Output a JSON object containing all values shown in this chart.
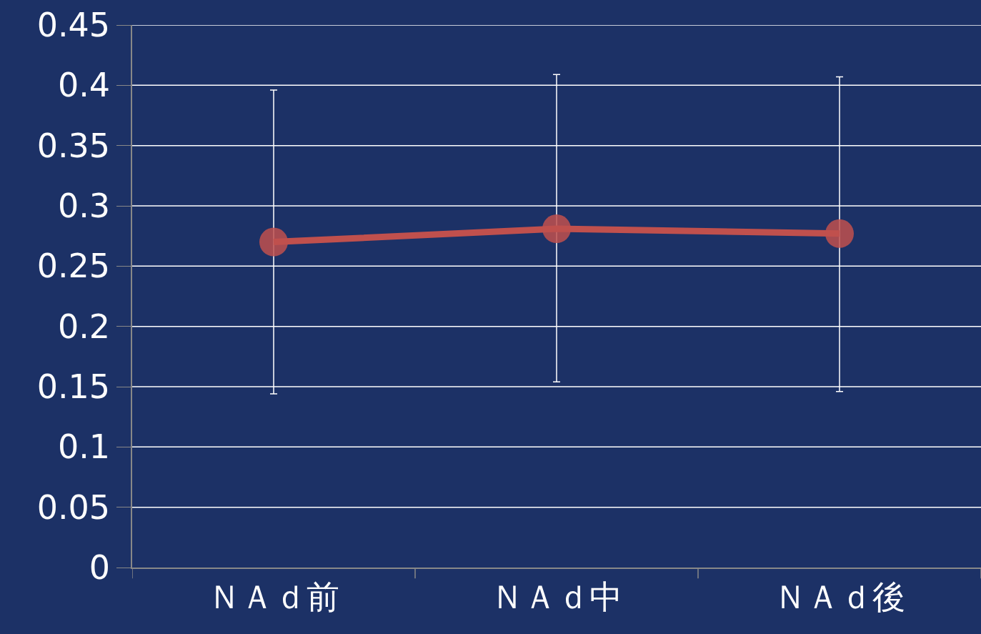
{
  "chart_data": {
    "type": "line",
    "categories": [
      "ＮＡｄ前",
      "ＮＡｄ中",
      "ＮＡｄ後"
    ],
    "series": [
      {
        "color": "#c0504d",
        "values": [
          0.27,
          0.281,
          0.277
        ],
        "errors": [
          [
            0.144,
            0.396
          ],
          [
            0.154,
            0.409
          ],
          [
            0.146,
            0.407
          ]
        ]
      }
    ],
    "ylim": [
      0,
      0.45
    ],
    "yticks": [
      0,
      0.05,
      0.1,
      0.15,
      0.2,
      0.25,
      0.3,
      0.35,
      0.4,
      0.45
    ],
    "grid": "y",
    "marker": "circle",
    "line_style": "solid"
  }
}
